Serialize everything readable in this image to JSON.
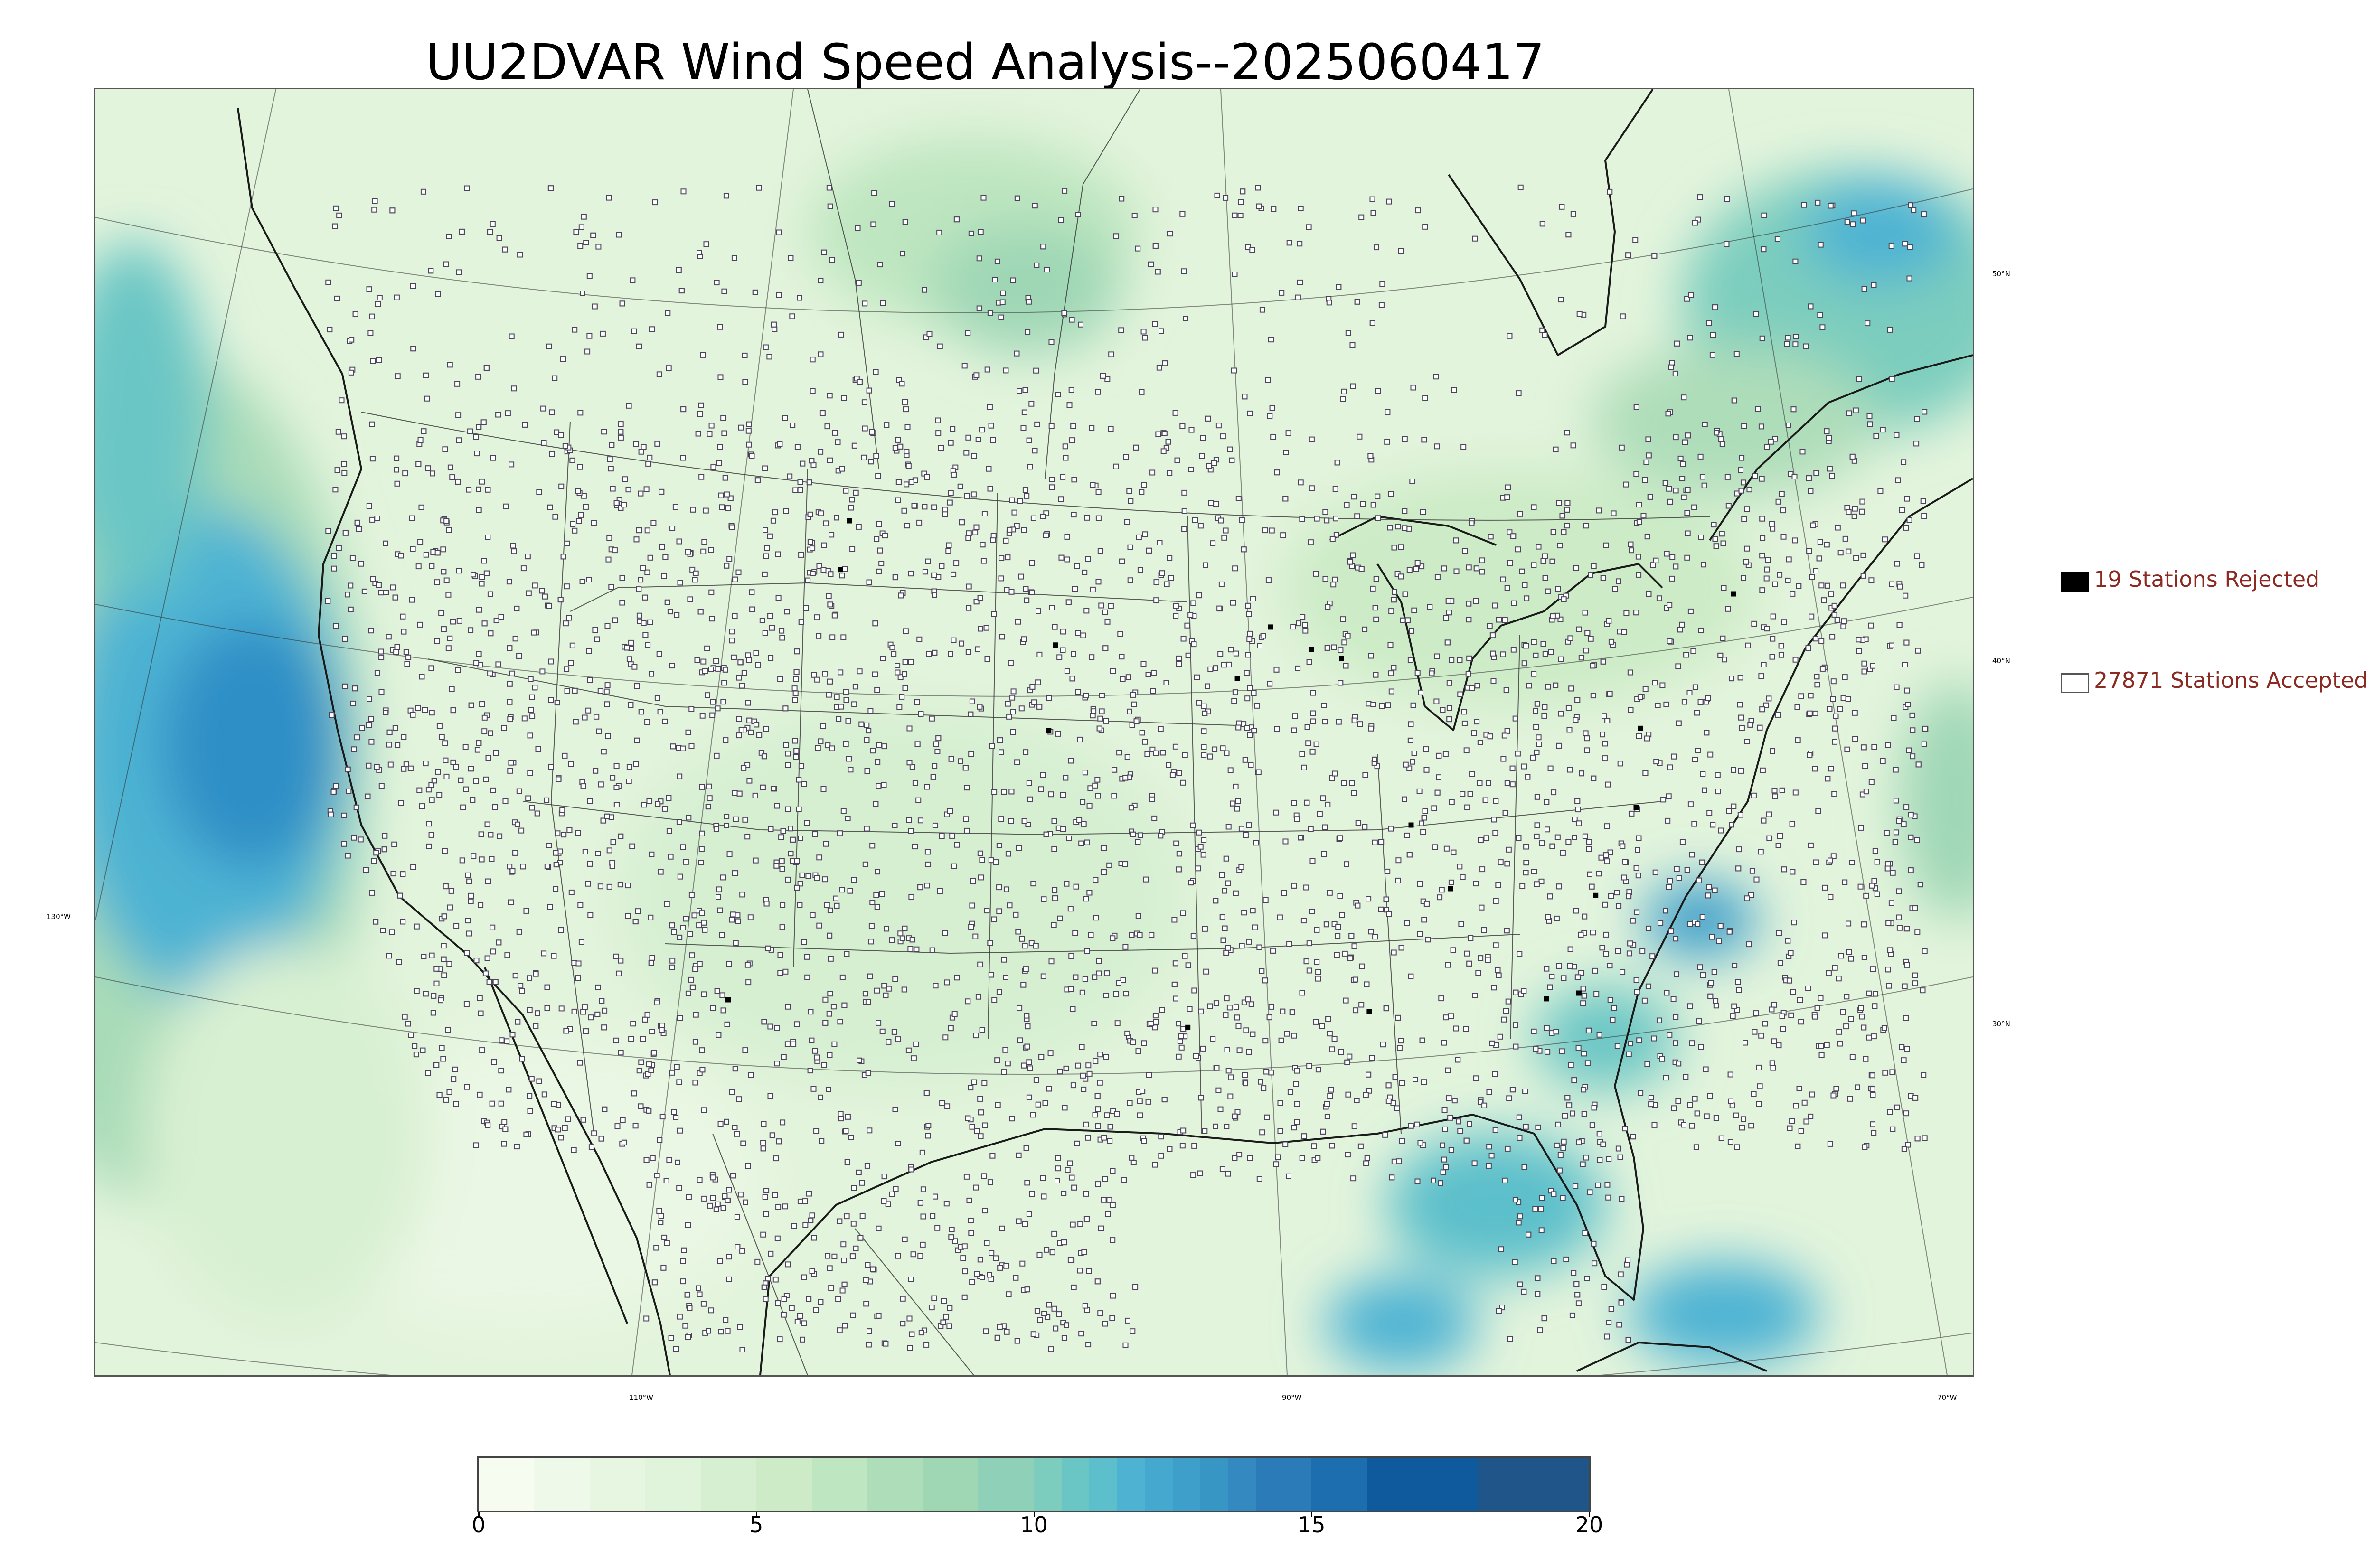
{
  "title": "UU2DVAR Wind Speed Analysis--2025060417",
  "map": {
    "longitude_labels": [
      {
        "text": "130°W"
      },
      {
        "text": "110°W"
      },
      {
        "text": "90°W"
      },
      {
        "text": "70°W"
      }
    ],
    "latitude_labels": [
      {
        "text": "50°N"
      },
      {
        "text": "40°N"
      },
      {
        "text": "30°N"
      }
    ],
    "colors": {
      "land_base": "#e3f4dc",
      "ocean_high": "#3b9fd0",
      "station_marker": "#4a4458",
      "rejected_marker": "#000000",
      "boundaries": "#222222"
    }
  },
  "legend": {
    "rejected": {
      "label": "19 Stations Rejected",
      "color": "#000000"
    },
    "accepted": {
      "label": "27871 Stations Accepted",
      "color": "#ffffff"
    }
  },
  "colorbar": {
    "range": [
      0,
      20
    ],
    "ticks": [
      "0",
      "5",
      "10",
      "15",
      "20"
    ],
    "levels": [
      0,
      1,
      2,
      3,
      4,
      5,
      6,
      7,
      8,
      9,
      10,
      10.5,
      11,
      11.5,
      12,
      12.5,
      13,
      13.5,
      14,
      15,
      16,
      18,
      20
    ],
    "colors": [
      "#f7fcf0",
      "#eef9ea",
      "#e7f6e1",
      "#e0f3db",
      "#d6efd1",
      "#ccebc6",
      "#bee6c0",
      "#aeddb9",
      "#9fd7b5",
      "#8ed1b8",
      "#7ccdbe",
      "#6ac6c5",
      "#5cbfcb",
      "#4eb3d3",
      "#45a9cf",
      "#3e9fca",
      "#3896c5",
      "#3389c0",
      "#2b7bb8",
      "#1d6eae",
      "#0f5a9d",
      "#1f5589"
    ]
  }
}
